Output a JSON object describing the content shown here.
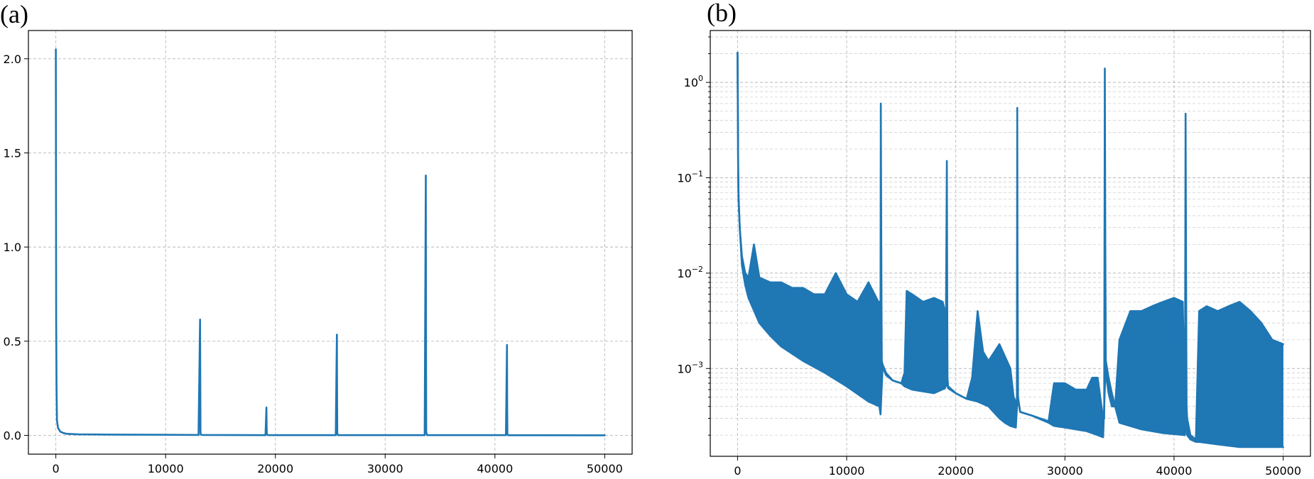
{
  "colors": {
    "series": "#1f77b4",
    "frame": "#000000",
    "grid": "#b0b0b0"
  },
  "chart_data": [
    {
      "panel_label": "(a)",
      "type": "line",
      "title": "",
      "xlabel": "",
      "ylabel": "",
      "yscale": "linear",
      "xlim": [
        -2500,
        52500
      ],
      "ylim": [
        -0.1,
        2.15
      ],
      "grid": true,
      "legend": "none",
      "x_ticks": [
        0,
        10000,
        20000,
        30000,
        40000,
        50000
      ],
      "x_tick_labels": [
        "0",
        "10000",
        "20000",
        "30000",
        "40000",
        "50000"
      ],
      "y_ticks": [
        0.0,
        0.5,
        1.0,
        1.5,
        2.0
      ],
      "y_tick_labels": [
        "0.0",
        "0.5",
        "1.0",
        "1.5",
        "2.0"
      ],
      "series": [
        {
          "x": [
            0,
            30,
            60,
            100,
            200,
            400,
            700,
            1000,
            2000,
            5000,
            10000,
            13000,
            13140,
            13160,
            13180,
            13200,
            13300,
            19100,
            19180,
            19200,
            19220,
            19300,
            25500,
            25600,
            25620,
            25640,
            25700,
            33600,
            33700,
            33720,
            33740,
            33800,
            41000,
            41100,
            41120,
            41140,
            41200,
            50000
          ],
          "y": [
            2.05,
            0.6,
            0.25,
            0.08,
            0.04,
            0.02,
            0.012,
            0.008,
            0.005,
            0.004,
            0.003,
            0.002,
            0.615,
            0.3,
            0.02,
            0.004,
            0.002,
            0.001,
            0.148,
            0.05,
            0.005,
            0.001,
            0.001,
            0.535,
            0.2,
            0.01,
            0.001,
            0.001,
            1.38,
            0.5,
            0.02,
            0.001,
            0.001,
            0.48,
            0.15,
            0.005,
            0.0005,
            0.0002
          ]
        }
      ]
    },
    {
      "panel_label": "(b)",
      "type": "line",
      "title": "",
      "xlabel": "",
      "ylabel": "",
      "yscale": "log",
      "xlim": [
        -2500,
        52500
      ],
      "ylim": [
        0.00012,
        3.5
      ],
      "grid": true,
      "legend": "none",
      "x_ticks": [
        0,
        10000,
        20000,
        30000,
        40000,
        50000
      ],
      "x_tick_labels": [
        "0",
        "10000",
        "20000",
        "30000",
        "40000",
        "50000"
      ],
      "y_ticks": [
        0.001,
        0.01,
        0.1,
        1
      ],
      "y_tick_labels": [
        {
          "base": "10",
          "exp": "−3"
        },
        {
          "base": "10",
          "exp": "−2"
        },
        {
          "base": "10",
          "exp": "−1"
        },
        {
          "base": "10",
          "exp": "0"
        }
      ],
      "series": [
        {
          "upper": {
            "x": [
              0,
              30,
              60,
              100,
              200,
              400,
              700,
              1000,
              1500,
              2000,
              3000,
              4000,
              5000,
              6000,
              7000,
              8000,
              9000,
              10000,
              11000,
              12000,
              12900,
              13000,
              13100,
              13130,
              13160,
              13190,
              13220,
              13300,
              13600,
              14200,
              15000,
              15300,
              15500,
              16000,
              17000,
              18000,
              18800,
              19000,
              19100,
              19180,
              19210,
              19240,
              19300,
              20000,
              21000,
              21500,
              22000,
              22500,
              23000,
              24000,
              25000,
              25300,
              25500,
              25600,
              25630,
              25660,
              25700,
              25900,
              27000,
              28500,
              29000,
              30000,
              31000,
              32000,
              32500,
              33000,
              33500,
              33600,
              33660,
              33700,
              33750,
              33800,
              34000,
              34300,
              34600,
              35000,
              36000,
              37000,
              38000,
              39000,
              40000,
              40800,
              41000,
              41060,
              41100,
              41150,
              41200,
              41500,
              42000,
              42300,
              43000,
              44000,
              45000,
              46000,
              47000,
              48000,
              49000,
              50000
            ],
            "y": [
              2.05,
              0.45,
              0.12,
              0.06,
              0.03,
              0.015,
              0.01,
              0.009,
              0.02,
              0.009,
              0.008,
              0.008,
              0.007,
              0.007,
              0.006,
              0.006,
              0.01,
              0.006,
              0.005,
              0.008,
              0.005,
              0.005,
              0.005,
              0.6,
              0.05,
              0.005,
              0.0012,
              0.0011,
              0.0009,
              0.00075,
              0.0007,
              0.0009,
              0.0065,
              0.006,
              0.005,
              0.0055,
              0.005,
              0.004,
              0.004,
              0.15,
              0.01,
              0.0008,
              0.00065,
              0.00055,
              0.00048,
              0.0008,
              0.004,
              0.0015,
              0.0012,
              0.0018,
              0.001,
              0.0005,
              0.00045,
              0.00042,
              0.54,
              0.01,
              0.0005,
              0.00035,
              0.00032,
              0.00028,
              0.0007,
              0.0007,
              0.0006,
              0.0006,
              0.0008,
              0.0008,
              0.0003,
              0.0003,
              1.4,
              0.02,
              0.0012,
              0.0008,
              0.00055,
              0.0004,
              0.0004,
              0.002,
              0.004,
              0.004,
              0.0045,
              0.005,
              0.0055,
              0.005,
              0.0003,
              0.47,
              0.01,
              0.0004,
              0.0003,
              0.0002,
              0.00018,
              0.004,
              0.0045,
              0.004,
              0.0045,
              0.005,
              0.004,
              0.003,
              0.002,
              0.0018
            ]
          },
          "lower": {
            "x": [
              0,
              30,
              60,
              100,
              200,
              400,
              700,
              1000,
              2000,
              3000,
              4000,
              6000,
              8000,
              10000,
              12000,
              13000,
              13100,
              13300,
              13600,
              14200,
              15000,
              15300,
              16000,
              18000,
              19000,
              19210,
              19300,
              20000,
              21000,
              22000,
              23000,
              24000,
              24500,
              25000,
              25500,
              25660,
              25900,
              27000,
              28500,
              29000,
              30000,
              32000,
              33000,
              33500,
              33750,
              34000,
              34300,
              34600,
              35000,
              37000,
              39000,
              41000,
              41150,
              41200,
              41500,
              42000,
              42300,
              44000,
              46000,
              48000,
              50000
            ],
            "y": [
              2.05,
              0.45,
              0.12,
              0.06,
              0.03,
              0.012,
              0.0075,
              0.0055,
              0.003,
              0.0022,
              0.0017,
              0.0012,
              0.0009,
              0.00065,
              0.00045,
              0.0004,
              0.00033,
              0.00105,
              0.00085,
              0.00075,
              0.0007,
              0.00065,
              0.0006,
              0.00055,
              0.00062,
              0.0007,
              0.00062,
              0.00055,
              0.00048,
              0.00045,
              0.0004,
              0.0003,
              0.00027,
              0.00025,
              0.00024,
              0.0005,
              0.00035,
              0.00032,
              0.00027,
              0.00025,
              0.00024,
              0.00022,
              0.0002,
              0.00019,
              0.0012,
              0.0008,
              0.00055,
              0.0004,
              0.00027,
              0.00023,
              0.00021,
              0.0002,
              0.0003,
              0.0002,
              0.00018,
              0.00017,
              0.00017,
              0.00016,
              0.00015,
              0.00015,
              0.00015
            ]
          }
        }
      ]
    }
  ]
}
